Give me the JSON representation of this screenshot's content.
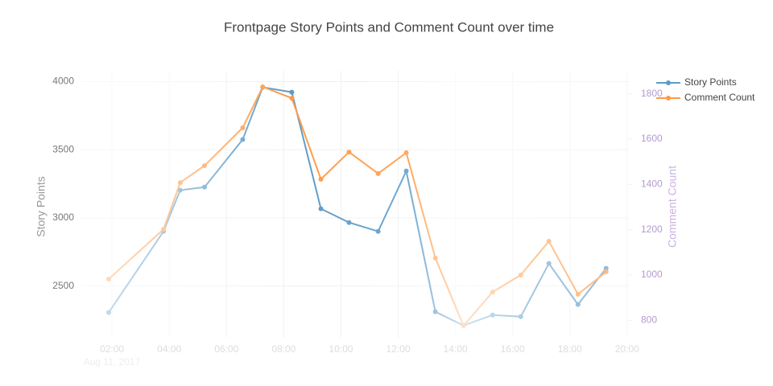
{
  "chart_data": {
    "type": "line",
    "title": "Frontpage Story Points and Comment Count over time",
    "y_label": "Story Points",
    "y2_label": "Comment Count",
    "x_date_label": "Aug 11, 2017",
    "x": [
      "2017-08-11T01:53",
      "2017-08-11T03:48",
      "2017-08-11T04:23",
      "2017-08-11T05:14",
      "2017-08-11T06:34",
      "2017-08-11T07:16",
      "2017-08-11T08:17",
      "2017-08-11T09:18",
      "2017-08-11T10:17",
      "2017-08-11T11:18",
      "2017-08-11T12:17",
      "2017-08-11T13:18",
      "2017-08-11T14:17",
      "2017-08-11T15:18",
      "2017-08-11T16:17",
      "2017-08-11T17:16",
      "2017-08-11T18:17",
      "2017-08-11T19:16"
    ],
    "series": [
      {
        "name": "Story Points",
        "color": "#5b9bc8",
        "values": [
          2305,
          2901,
          3203,
          3226,
          3575,
          3959,
          3923,
          3067,
          2966,
          2901,
          3344,
          2311,
          2210,
          2287,
          2275,
          2665,
          2364,
          2630
        ]
      },
      {
        "name": "Comment Count",
        "color": "#ff9a45",
        "axis": "y2",
        "values": [
          982,
          1202,
          1408,
          1483,
          1650,
          1831,
          1781,
          1423,
          1543,
          1448,
          1540,
          1075,
          776,
          925,
          1000,
          1149,
          915,
          1014
        ]
      }
    ],
    "xlim": [
      "2017-08-11T00:54",
      "2017-08-11T20:02"
    ],
    "xticks": [
      {
        "value": "2017-08-11T02:00",
        "label": "02:00"
      },
      {
        "value": "2017-08-11T04:00",
        "label": "04:00"
      },
      {
        "value": "2017-08-11T06:00",
        "label": "06:00"
      },
      {
        "value": "2017-08-11T08:00",
        "label": "08:00"
      },
      {
        "value": "2017-08-11T10:00",
        "label": "10:00"
      },
      {
        "value": "2017-08-11T12:00",
        "label": "12:00"
      },
      {
        "value": "2017-08-11T14:00",
        "label": "14:00"
      },
      {
        "value": "2017-08-11T16:00",
        "label": "16:00"
      },
      {
        "value": "2017-08-11T18:00",
        "label": "18:00"
      },
      {
        "value": "2017-08-11T20:00",
        "label": "20:00"
      }
    ],
    "ylim": [
      2120,
      4080
    ],
    "yticks": [
      2500,
      3000,
      3500,
      4000
    ],
    "y2lim": [
      723,
      1902
    ],
    "y2ticks": [
      800,
      1000,
      1200,
      1400,
      1600,
      1800
    ],
    "grid": true,
    "legend": "top-right"
  }
}
